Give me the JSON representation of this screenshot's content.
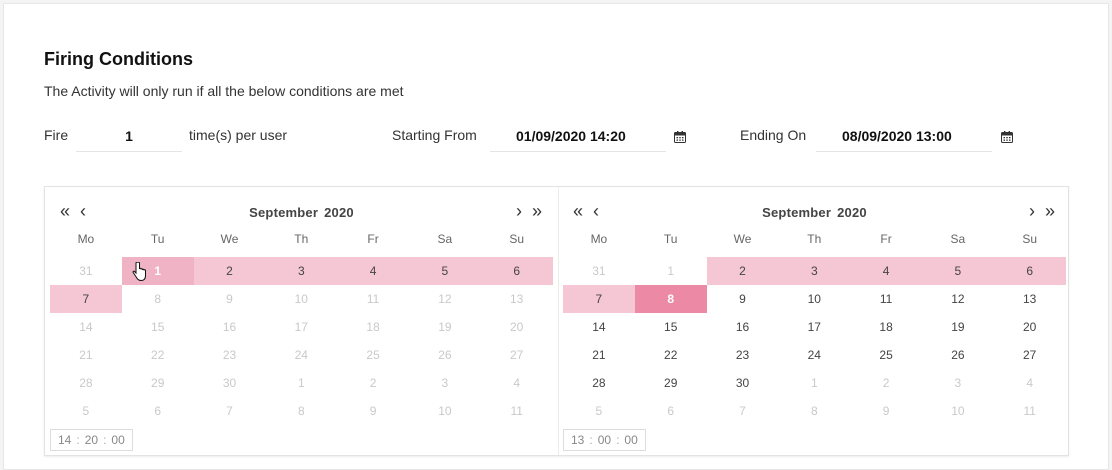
{
  "form": {
    "title": "Firing Conditions",
    "subtitle": "The Activity will only run if all the below conditions are met",
    "fire_label": "Fire",
    "fire_value": "1",
    "fire_suffix": "time(s) per user",
    "start_label": "Starting From",
    "start_value": "01/09/2020 14:20",
    "end_label": "Ending On",
    "end_value": "08/09/2020 13:00"
  },
  "colors": {
    "range": "#f5c6d4",
    "selected": "#ec8aa6"
  },
  "calendars": [
    {
      "month": "September",
      "year": "2020",
      "nav": {
        "prev_year": "«",
        "prev": "‹",
        "next": "›",
        "next_year": "»"
      },
      "weekdays": [
        "Mo",
        "Tu",
        "We",
        "Th",
        "Fr",
        "Sa",
        "Su"
      ],
      "rows": [
        [
          "31",
          "1",
          "2",
          "3",
          "4",
          "5",
          "6"
        ],
        [
          "7",
          "8",
          "9",
          "10",
          "11",
          "12",
          "13"
        ],
        [
          "14",
          "15",
          "16",
          "17",
          "18",
          "19",
          "20"
        ],
        [
          "21",
          "22",
          "23",
          "24",
          "25",
          "26",
          "27"
        ],
        [
          "28",
          "29",
          "30",
          "1",
          "2",
          "3",
          "4"
        ],
        [
          "5",
          "6",
          "7",
          "8",
          "9",
          "10",
          "11"
        ]
      ],
      "time": {
        "h": "14",
        "m": "20",
        "s": "00"
      }
    },
    {
      "month": "September",
      "year": "2020",
      "nav": {
        "prev_year": "«",
        "prev": "‹",
        "next": "›",
        "next_year": "»"
      },
      "weekdays": [
        "Mo",
        "Tu",
        "We",
        "Th",
        "Fr",
        "Sa",
        "Su"
      ],
      "rows": [
        [
          "31",
          "1",
          "2",
          "3",
          "4",
          "5",
          "6"
        ],
        [
          "7",
          "8",
          "9",
          "10",
          "11",
          "12",
          "13"
        ],
        [
          "14",
          "15",
          "16",
          "17",
          "18",
          "19",
          "20"
        ],
        [
          "21",
          "22",
          "23",
          "24",
          "25",
          "26",
          "27"
        ],
        [
          "28",
          "29",
          "30",
          "1",
          "2",
          "3",
          "4"
        ],
        [
          "5",
          "6",
          "7",
          "8",
          "9",
          "10",
          "11"
        ]
      ],
      "time": {
        "h": "13",
        "m": "00",
        "s": "00"
      }
    }
  ]
}
